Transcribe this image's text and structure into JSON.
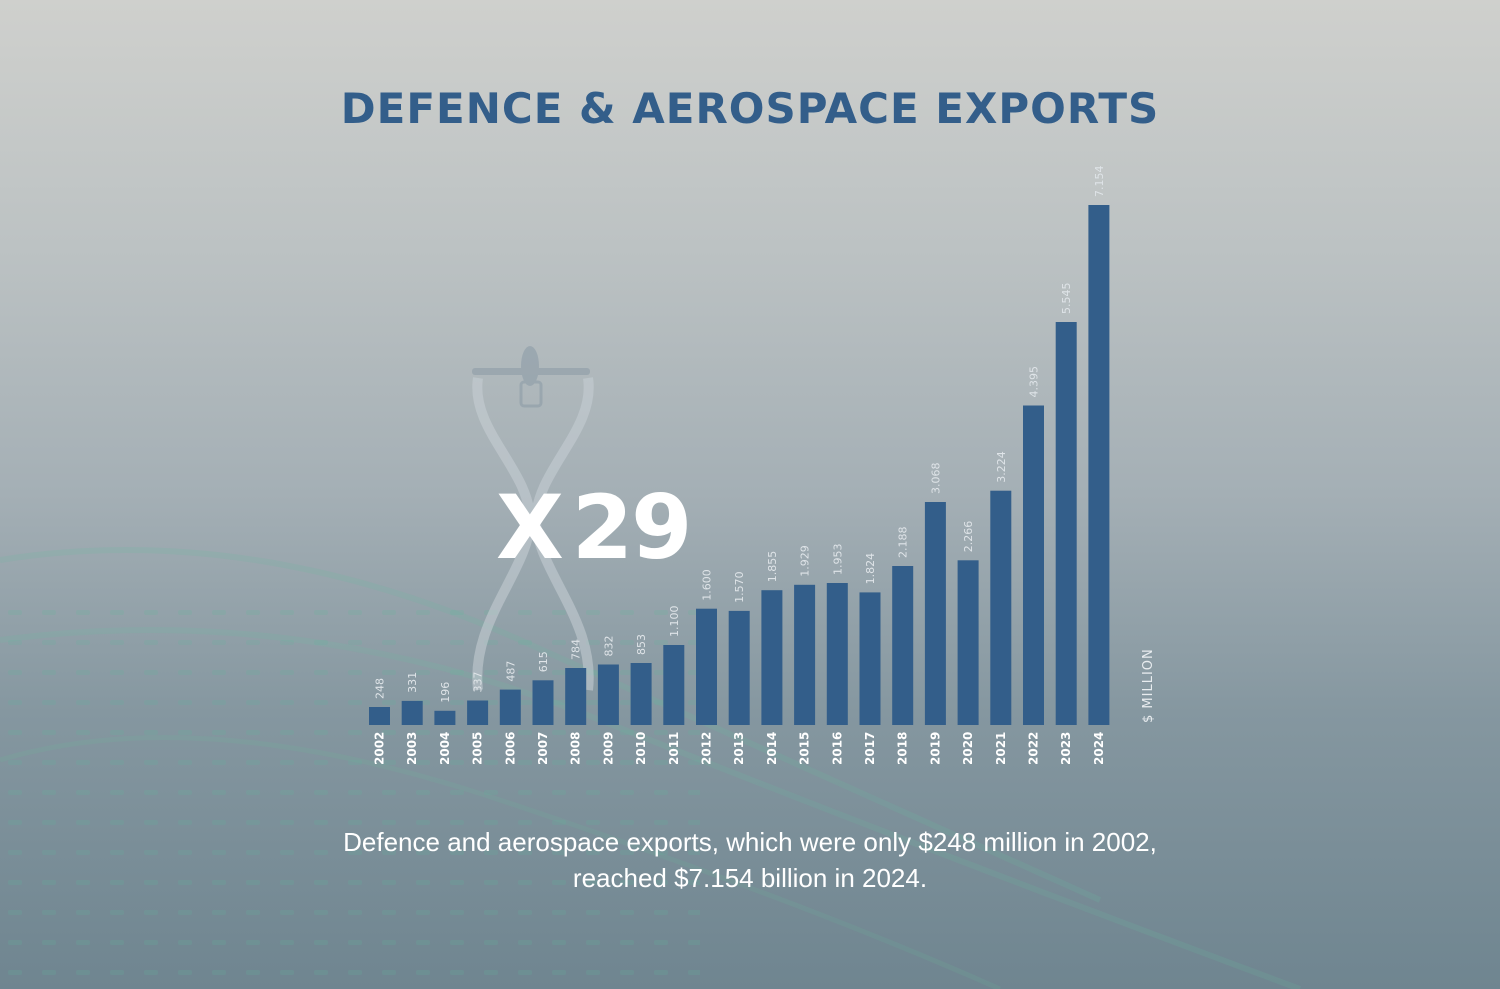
{
  "title": "DEFENCE & AEROSPACE EXPORTS",
  "multiplier": {
    "prefix": "X",
    "value": "29"
  },
  "caption": {
    "line1": "Defence and aerospace exports, which were only $248 million in 2002,",
    "line2": "reached $7.154 billion in 2024."
  },
  "colors": {
    "bar": "#335e8a",
    "title": "#335e8a",
    "value_label": "#dfe4e8",
    "year_label": "#ffffff",
    "unit_label": "#e8ecef"
  },
  "icons": {
    "hourglass": "hourglass-drone-icon"
  },
  "chart_data": {
    "type": "bar",
    "title": "DEFENCE & AEROSPACE EXPORTS",
    "xlabel": "",
    "ylabel": "$ MILLION",
    "ylim": [
      0,
      7154
    ],
    "grid": false,
    "legend": "none",
    "categories": [
      "2002",
      "2003",
      "2004",
      "2005",
      "2006",
      "2007",
      "2008",
      "2009",
      "2010",
      "2011",
      "2012",
      "2013",
      "2014",
      "2015",
      "2016",
      "2017",
      "2018",
      "2019",
      "2020",
      "2021",
      "2022",
      "2023",
      "2024"
    ],
    "values": [
      248,
      331,
      196,
      337,
      487,
      615,
      784,
      832,
      853,
      1100,
      1600,
      1570,
      1855,
      1929,
      1953,
      1824,
      2188,
      3068,
      2266,
      3224,
      4395,
      5545,
      7154
    ],
    "value_labels": [
      "248",
      "331",
      "196",
      "337",
      "487",
      "615",
      "784",
      "832",
      "853",
      "1.100",
      "1.600",
      "1.570",
      "1.855",
      "1.929",
      "1.953",
      "1.824",
      "2.188",
      "3.068",
      "2.266",
      "3.224",
      "4.395",
      "5.545",
      "7.154"
    ]
  }
}
